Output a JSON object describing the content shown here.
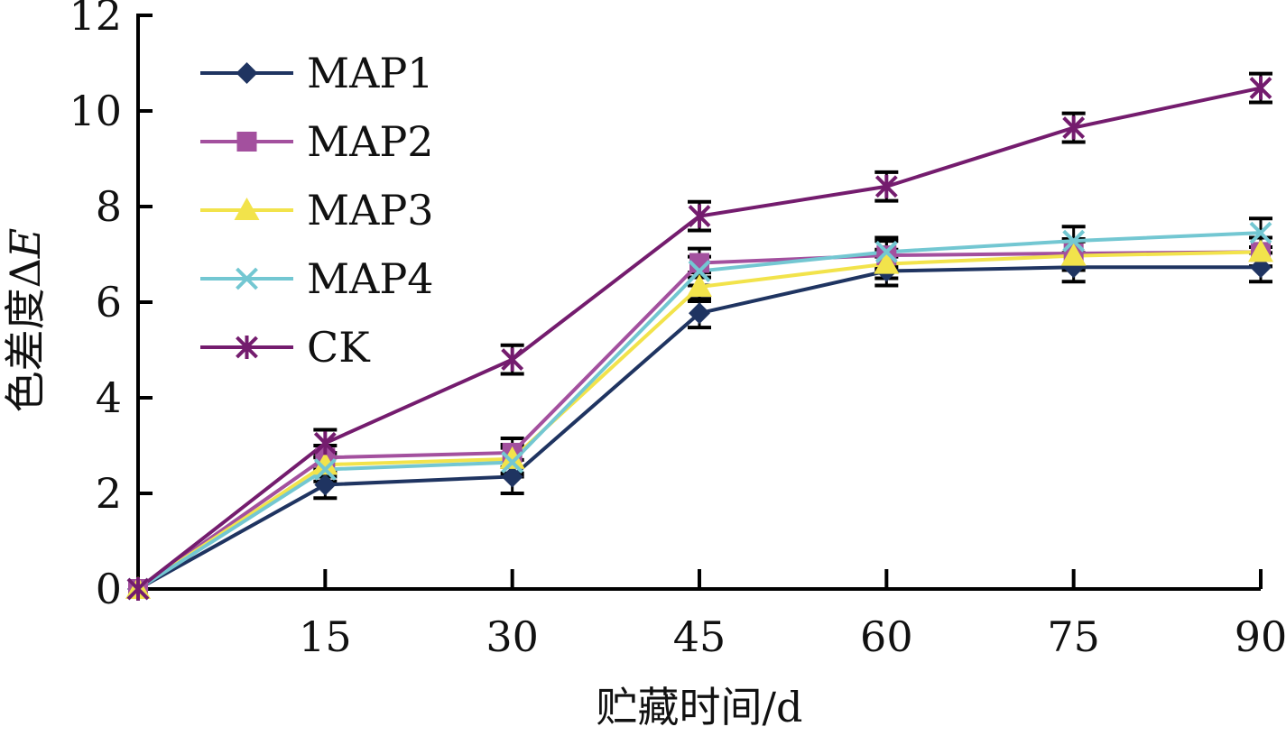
{
  "chart_data": {
    "type": "line",
    "xlabel": "贮藏时间/d",
    "ylabel_main": "色差度Δ",
    "ylabel_italic": "E",
    "x": [
      0,
      15,
      30,
      45,
      60,
      75,
      90
    ],
    "x_tick_labels": [
      "15",
      "30",
      "45",
      "60",
      "75",
      "90"
    ],
    "x_tick_values": [
      15,
      30,
      45,
      60,
      75,
      90
    ],
    "y_tick_values": [
      0,
      2,
      4,
      6,
      8,
      10,
      12
    ],
    "y_tick_labels": [
      "0",
      "2",
      "4",
      "6",
      "8",
      "10",
      "12"
    ],
    "ylim": [
      0,
      12
    ],
    "xlim": [
      0,
      90
    ],
    "grid": false,
    "legend_position": "top-left",
    "series": [
      {
        "name": "MAP1",
        "color": "#1f3461",
        "marker": "diamond",
        "values": [
          0,
          2.18,
          2.35,
          5.77,
          6.65,
          6.73,
          6.73
        ],
        "errors": [
          0,
          0.28,
          0.35,
          0.3,
          0.3,
          0.3,
          0.3
        ]
      },
      {
        "name": "MAP2",
        "color": "#a3509e",
        "marker": "square",
        "values": [
          0,
          2.75,
          2.85,
          6.82,
          6.98,
          7.02,
          7.05
        ],
        "errors": [
          0,
          0.25,
          0.3,
          0.3,
          0.3,
          0.3,
          0.3
        ]
      },
      {
        "name": "MAP3",
        "color": "#f2e34b",
        "marker": "triangle",
        "values": [
          0,
          2.6,
          2.72,
          6.32,
          6.8,
          6.97,
          7.05
        ],
        "errors": [
          0,
          0.25,
          0.3,
          0.3,
          0.3,
          0.3,
          0.3
        ]
      },
      {
        "name": "MAP4",
        "color": "#73c7d2",
        "marker": "x",
        "values": [
          0,
          2.5,
          2.65,
          6.65,
          7.05,
          7.28,
          7.45
        ],
        "errors": [
          0,
          0.25,
          0.3,
          0.3,
          0.3,
          0.3,
          0.3
        ]
      },
      {
        "name": "CK",
        "color": "#741c6e",
        "marker": "star",
        "values": [
          0,
          3.05,
          4.8,
          7.8,
          8.42,
          9.65,
          10.48
        ],
        "errors": [
          0,
          0.28,
          0.3,
          0.3,
          0.3,
          0.3,
          0.3
        ]
      }
    ]
  }
}
